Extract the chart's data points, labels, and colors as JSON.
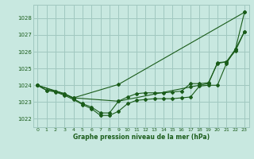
{
  "background_color": "#c8e8e0",
  "grid_color": "#a0c8c0",
  "line_color": "#1a5c1a",
  "text_color": "#1a5c1a",
  "xlabel": "Graphe pression niveau de la mer (hPa)",
  "ylim": [
    1021.5,
    1028.8
  ],
  "xlim": [
    -0.5,
    23.5
  ],
  "yticks": [
    1022,
    1023,
    1024,
    1025,
    1026,
    1027,
    1028
  ],
  "xticks": [
    0,
    1,
    2,
    3,
    4,
    5,
    6,
    7,
    8,
    9,
    10,
    11,
    12,
    13,
    14,
    15,
    16,
    17,
    18,
    19,
    20,
    21,
    22,
    23
  ],
  "series": [
    {
      "x": [
        0,
        1,
        2,
        3,
        4,
        5,
        6,
        7,
        8,
        9,
        10,
        11,
        12,
        13,
        14,
        15,
        16,
        17,
        18,
        19,
        20,
        21,
        22,
        23
      ],
      "y": [
        1024.0,
        1023.7,
        1023.6,
        1023.4,
        1023.15,
        1022.85,
        1022.6,
        1022.2,
        1022.2,
        1022.45,
        1022.9,
        1023.1,
        1023.15,
        1023.2,
        1023.2,
        1023.2,
        1023.25,
        1023.3,
        1023.95,
        1024.0,
        1024.0,
        1025.3,
        1026.15,
        1028.35
      ]
    },
    {
      "x": [
        0,
        1,
        2,
        3,
        4,
        5,
        6,
        7,
        8,
        9,
        10,
        11,
        12,
        13,
        14,
        15,
        16,
        17,
        18,
        19,
        20,
        21,
        22,
        23
      ],
      "y": [
        1024.0,
        1023.7,
        1023.65,
        1023.5,
        1023.2,
        1022.9,
        1022.7,
        1022.35,
        1022.35,
        1023.05,
        1023.3,
        1023.5,
        1023.55,
        1023.55,
        1023.55,
        1023.6,
        1023.65,
        1024.1,
        1024.1,
        1024.15,
        1025.3,
        1025.4,
        1026.05,
        1027.2
      ]
    },
    {
      "x": [
        0,
        3,
        4,
        9,
        23
      ],
      "y": [
        1024.0,
        1023.45,
        1023.25,
        1024.05,
        1028.35
      ]
    },
    {
      "x": [
        0,
        3,
        4,
        9,
        17,
        18,
        19,
        20,
        21,
        22,
        23
      ],
      "y": [
        1024.0,
        1023.5,
        1023.25,
        1023.05,
        1023.9,
        1024.0,
        1024.1,
        1025.35,
        1025.4,
        1026.15,
        1027.2
      ]
    }
  ]
}
